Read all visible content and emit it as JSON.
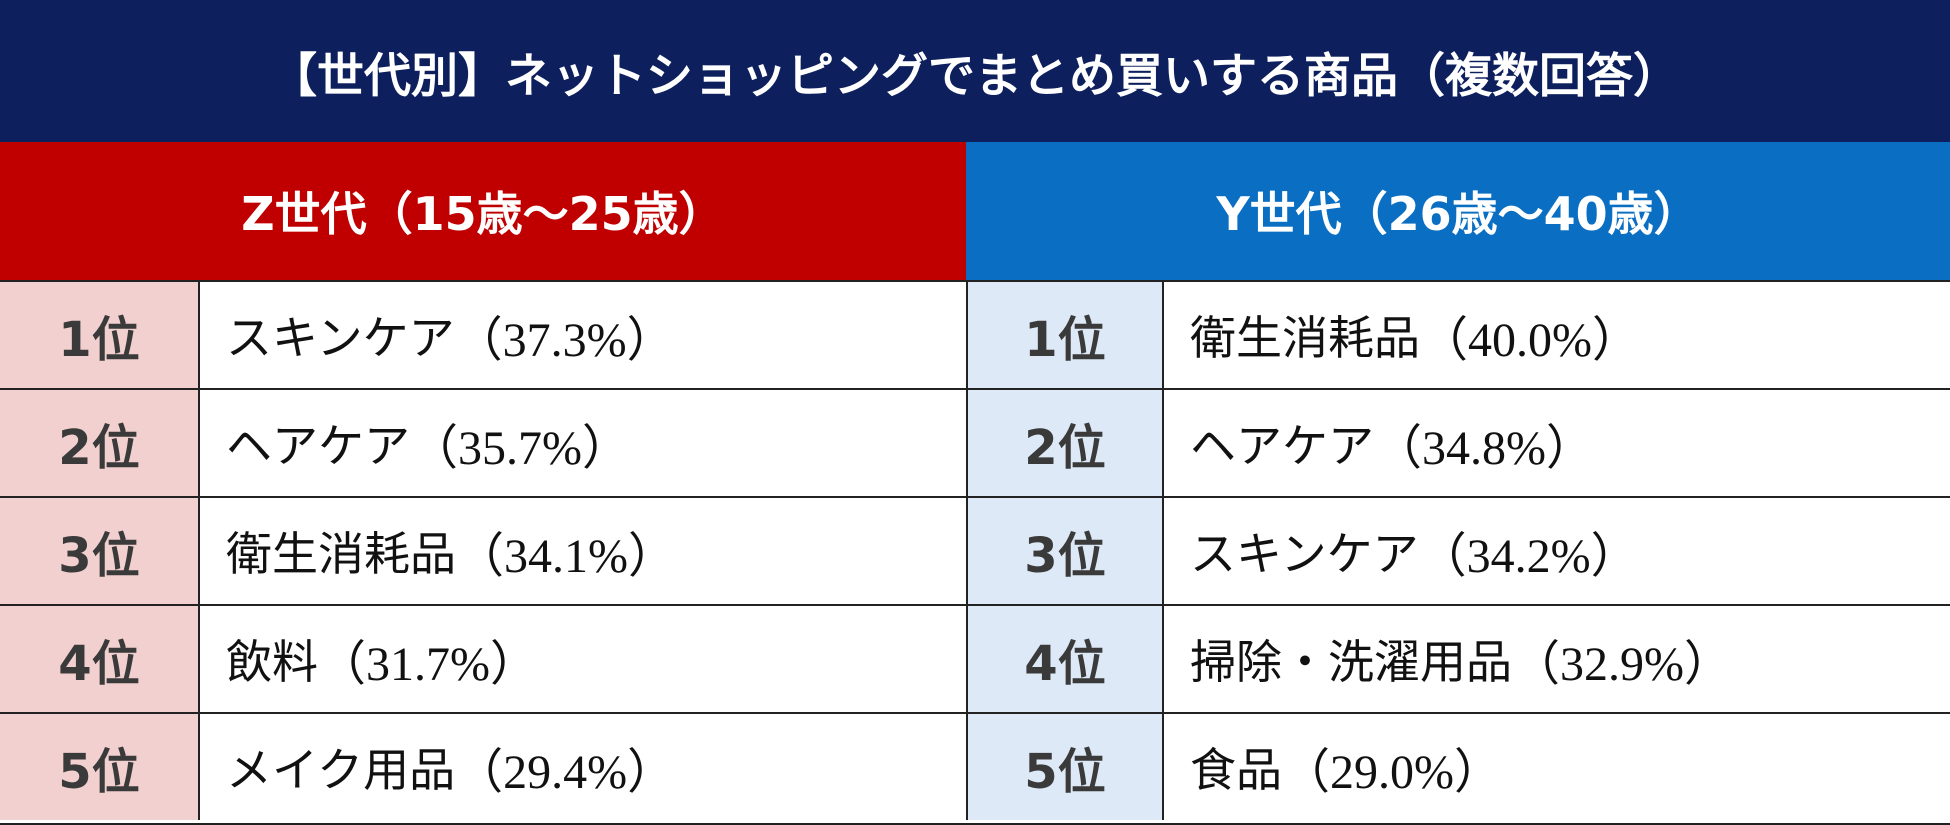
{
  "title": "【世代別】ネットショッピングでまとめ買いする商品（複数回答）",
  "groups": {
    "z": {
      "label": "Z世代（15歳～25歳）",
      "color": "#c00000"
    },
    "y": {
      "label": "Y世代（26歳～40歳）",
      "color": "#0a6fc2"
    }
  },
  "rows": [
    {
      "rank": "1位",
      "z_item": "スキンケア",
      "z_pct": "（37.3%）",
      "y_item": "衛生消耗品",
      "y_pct": "（40.0%）"
    },
    {
      "rank": "2位",
      "z_item": "ヘアケア",
      "z_pct": "（35.7%）",
      "y_item": "ヘアケア",
      "y_pct": "（34.8%）"
    },
    {
      "rank": "3位",
      "z_item": "衛生消耗品",
      "z_pct": "（34.1%）",
      "y_item": "スキンケア",
      "y_pct": "（34.2%）"
    },
    {
      "rank": "4位",
      "z_item": "飲料",
      "z_pct": "（31.7%）",
      "y_item": "掃除・洗濯用品",
      "y_pct": "（32.9%）"
    },
    {
      "rank": "5位",
      "z_item": "メイク用品",
      "z_pct": "（29.4%）",
      "y_item": "食品",
      "y_pct": "（29.0%）"
    }
  ]
}
